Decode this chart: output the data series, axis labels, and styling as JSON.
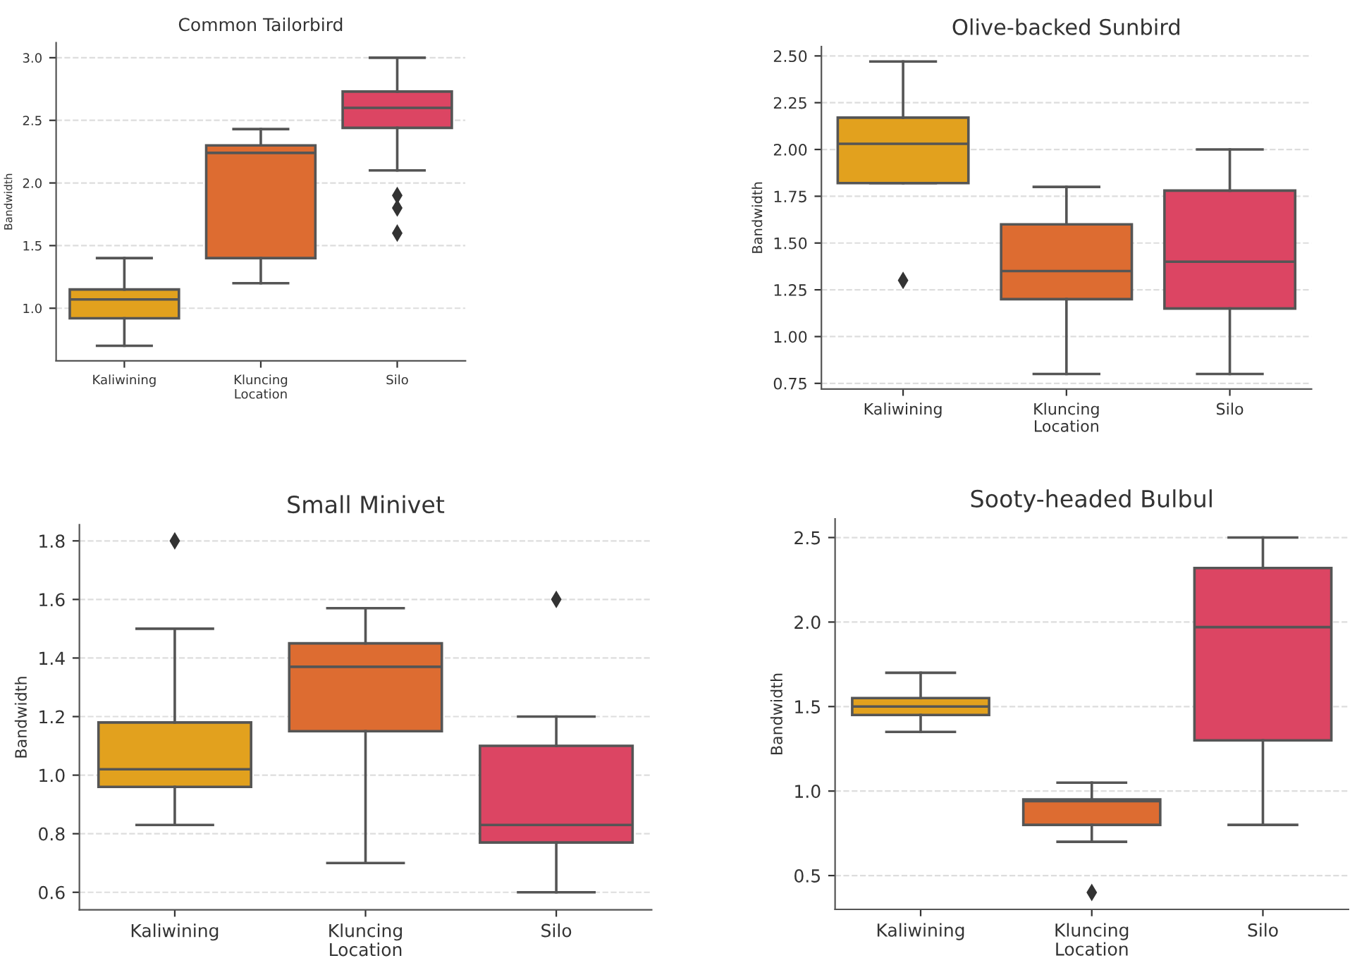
{
  "chart_data": [
    {
      "type": "box",
      "title": "Common Tailorbird",
      "xlabel": "Location",
      "ylabel": "Bandwidth",
      "categories": [
        "Kaliwining",
        "Kluncing",
        "Silo"
      ],
      "colors": [
        "#e2a11e",
        "#dd6c31",
        "#dc4563"
      ],
      "ylim": [
        0.58,
        3.12
      ],
      "yticks": [
        {
          "value": 1,
          "label": "1.0"
        },
        1.5,
        {
          "value": 2,
          "label": "2.0"
        },
        2.5,
        {
          "value": 3,
          "label": "3.0"
        }
      ],
      "grid": "y",
      "boxes": [
        {
          "low": 0.7,
          "q1": 0.92,
          "median": 1.07,
          "q3": 1.15,
          "high": 1.4
        },
        {
          "low": 1.2,
          "q1": 1.4,
          "median": 2.24,
          "q3": 2.3,
          "high": 2.43
        },
        {
          "low": 2.1,
          "q1": 2.44,
          "median": 2.6,
          "q3": 2.73,
          "high": 3.0,
          "outliers": [
            1.9,
            1.8,
            1.6
          ]
        }
      ]
    },
    {
      "type": "box",
      "title": "Olive-backed Sunbird",
      "xlabel": "Location",
      "ylabel": "Bandwidth",
      "categories": [
        "Kaliwining",
        "Kluncing",
        "Silo"
      ],
      "colors": [
        "#e2a11e",
        "#dd6c31",
        "#dc4563"
      ],
      "ylim": [
        0.72,
        2.55
      ],
      "yticks": [
        {
          "value": 0.75,
          "label": "0.75"
        },
        {
          "value": 1.0,
          "label": "1.00"
        },
        {
          "value": 1.25,
          "label": "1.25"
        },
        {
          "value": 1.5,
          "label": "1.50"
        },
        {
          "value": 1.75,
          "label": "1.75"
        },
        {
          "value": 2.0,
          "label": "2.00"
        },
        {
          "value": 2.25,
          "label": "2.25"
        },
        {
          "value": 2.5,
          "label": "2.50"
        }
      ],
      "grid": "y",
      "boxes": [
        {
          "low": 1.82,
          "q1": 1.82,
          "median": 2.03,
          "q3": 2.17,
          "high": 2.47,
          "outliers": [
            1.3
          ]
        },
        {
          "low": 0.8,
          "q1": 1.2,
          "median": 1.35,
          "q3": 1.6,
          "high": 1.8
        },
        {
          "low": 0.8,
          "q1": 1.15,
          "median": 1.4,
          "q3": 1.78,
          "high": 2.0
        }
      ]
    },
    {
      "type": "box",
      "title": "Small Minivet",
      "xlabel": "Location",
      "ylabel": "Bandwidth",
      "categories": [
        "Kaliwining",
        "Kluncing",
        "Silo"
      ],
      "colors": [
        "#e2a11e",
        "#dd6c31",
        "#dc4563"
      ],
      "ylim": [
        0.54,
        1.855
      ],
      "yticks": [
        0.6,
        0.8,
        {
          "value": 1,
          "label": "1.0"
        },
        1.2,
        1.4,
        1.6,
        1.8
      ],
      "grid": "y",
      "boxes": [
        {
          "low": 0.83,
          "q1": 0.96,
          "median": 1.02,
          "q3": 1.18,
          "high": 1.5,
          "outliers": [
            1.8
          ]
        },
        {
          "low": 0.7,
          "q1": 1.15,
          "median": 1.37,
          "q3": 1.45,
          "high": 1.57
        },
        {
          "low": 0.6,
          "q1": 0.77,
          "median": 0.83,
          "q3": 1.1,
          "high": 1.2,
          "outliers": [
            1.6
          ]
        }
      ]
    },
    {
      "type": "box",
      "title": "Sooty-headed Bulbul",
      "xlabel": "Location",
      "ylabel": "Bandwidth",
      "categories": [
        "Kaliwining",
        "Kluncing",
        "Silo"
      ],
      "colors": [
        "#e2a11e",
        "#dd6c31",
        "#dc4563"
      ],
      "ylim": [
        0.3,
        2.61
      ],
      "yticks": [
        0.5,
        {
          "value": 1,
          "label": "1.0"
        },
        1.5,
        {
          "value": 2,
          "label": "2.0"
        },
        2.5
      ],
      "grid": "y",
      "boxes": [
        {
          "low": 1.35,
          "q1": 1.45,
          "median": 1.5,
          "q3": 1.55,
          "high": 1.7
        },
        {
          "low": 0.7,
          "q1": 0.8,
          "median": 0.94,
          "q3": 0.95,
          "high": 1.05,
          "outliers": [
            0.4
          ]
        },
        {
          "low": 0.8,
          "q1": 1.3,
          "median": 1.97,
          "q3": 2.32,
          "high": 2.5
        }
      ]
    }
  ]
}
